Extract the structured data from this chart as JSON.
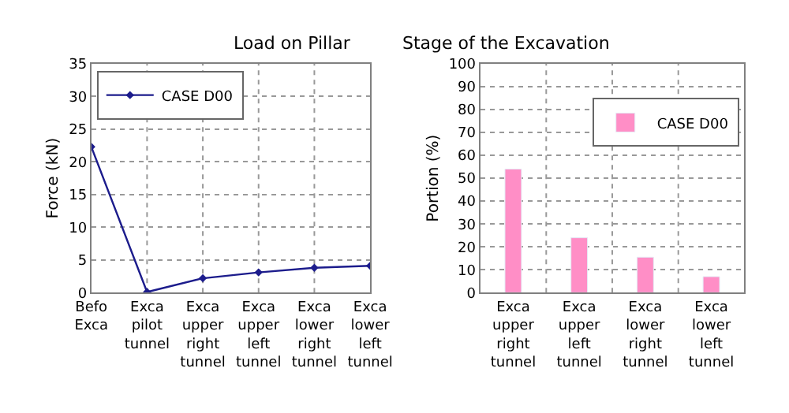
{
  "chart_data": [
    {
      "type": "line",
      "title": "Load on Pillar",
      "ylabel": "Force (kN)",
      "categories": [
        "Befo\nExca",
        "Exca\npilot\ntunnel",
        "Exca\nupper\nright\ntunnel",
        "Exca\nupper\nleft\ntunnel",
        "Exca\nlower\nright\ntunnel",
        "Exca\nlower\nleft\ntunnel"
      ],
      "series": [
        {
          "name": "CASE D00",
          "color": "#1c1c8c",
          "values": [
            22.3,
            0.1,
            2.2,
            3.1,
            3.8,
            4.1
          ]
        }
      ],
      "ylim": [
        0,
        35
      ],
      "yticks": [
        0,
        5,
        10,
        15,
        20,
        25,
        30,
        35
      ],
      "grid": true,
      "legend": "top left",
      "marker": "diamond"
    },
    {
      "type": "bar",
      "title": "Stage of the Excavation",
      "ylabel": "Portion (%)",
      "categories": [
        "Exca\nupper\nright\ntunnel",
        "Exca\nupper\nleft\ntunnel",
        "Exca\nlower\nright\ntunnel",
        "Exca\nlower\nleft\ntunnel"
      ],
      "series": [
        {
          "name": "CASE D00",
          "color": "#ff8ec6",
          "values": [
            54,
            24,
            15.5,
            7
          ]
        }
      ],
      "ylim": [
        0,
        100
      ],
      "yticks": [
        0,
        10,
        20,
        30,
        40,
        50,
        60,
        70,
        80,
        90,
        100
      ],
      "grid": true,
      "legend": "top right"
    }
  ]
}
